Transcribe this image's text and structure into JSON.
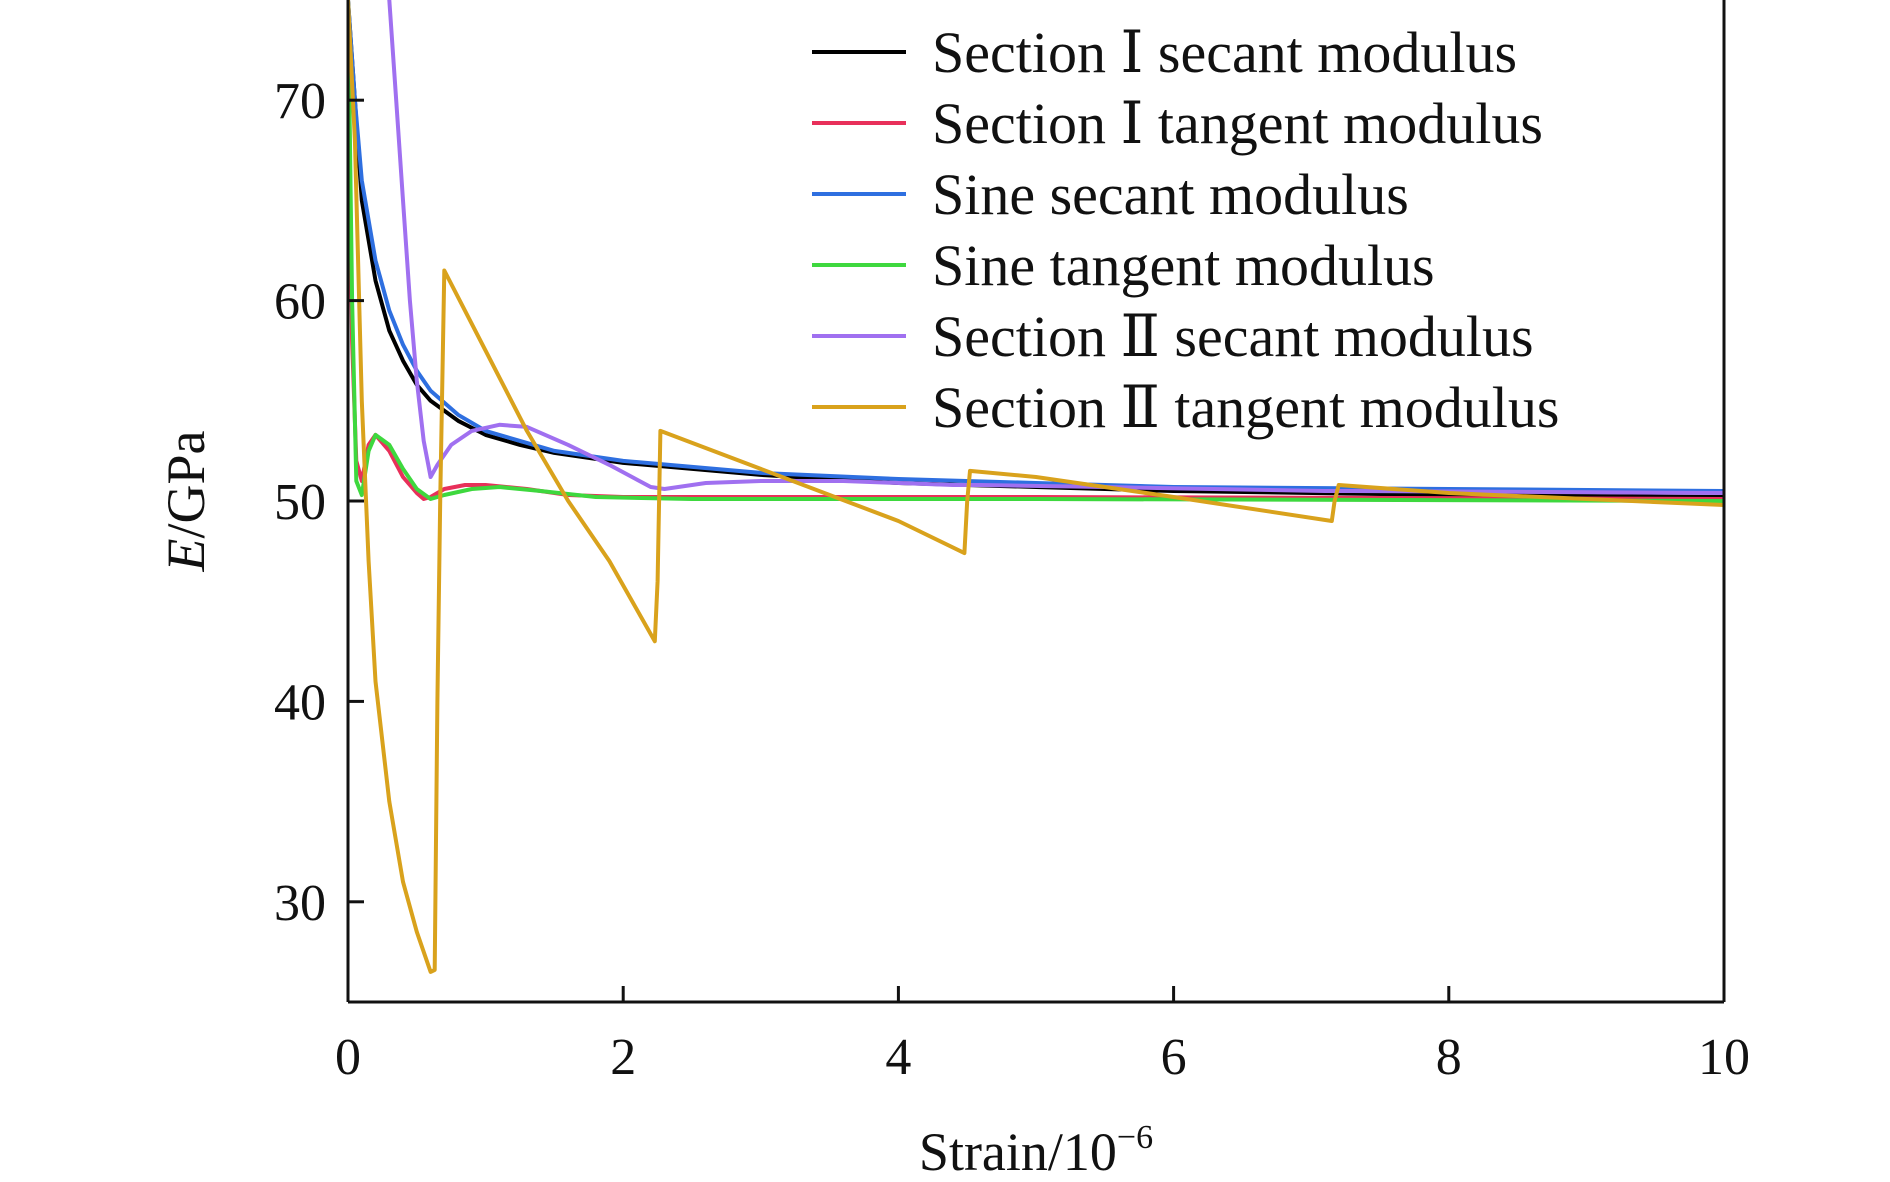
{
  "chart_data": {
    "type": "line",
    "xlabel_main": "Strain/10",
    "xlabel_sup": "−6",
    "ylabel_italic": "E",
    "ylabel_rest": "/GPa",
    "xlim": [
      0,
      10
    ],
    "ylim": [
      25,
      75
    ],
    "xticks": [
      0,
      2,
      4,
      6,
      8,
      10
    ],
    "yticks": [
      30,
      40,
      50,
      60,
      70
    ],
    "grid": false,
    "legend_position": "top-right",
    "series": [
      {
        "name": "Section Ⅰ secant modulus",
        "color": "#000000",
        "points": [
          [
            0.0,
            75
          ],
          [
            0.05,
            70
          ],
          [
            0.1,
            65
          ],
          [
            0.2,
            61
          ],
          [
            0.3,
            58.5
          ],
          [
            0.4,
            57
          ],
          [
            0.5,
            55.8
          ],
          [
            0.6,
            55
          ],
          [
            0.8,
            54
          ],
          [
            1.0,
            53.3
          ],
          [
            1.25,
            52.8
          ],
          [
            1.5,
            52.4
          ],
          [
            2.0,
            51.9
          ],
          [
            3.0,
            51.3
          ],
          [
            4.0,
            50.9
          ],
          [
            5.0,
            50.7
          ],
          [
            6.0,
            50.5
          ],
          [
            8.0,
            50.3
          ],
          [
            10.0,
            50.2
          ]
        ]
      },
      {
        "name": "Section Ⅰ tangent modulus",
        "color": "#e8305a",
        "points": [
          [
            0.0,
            75
          ],
          [
            0.03,
            58
          ],
          [
            0.06,
            52
          ],
          [
            0.1,
            51
          ],
          [
            0.15,
            52.8
          ],
          [
            0.2,
            53.3
          ],
          [
            0.3,
            52.5
          ],
          [
            0.4,
            51.2
          ],
          [
            0.5,
            50.4
          ],
          [
            0.55,
            50.1
          ],
          [
            0.6,
            50.2
          ],
          [
            0.7,
            50.6
          ],
          [
            0.85,
            50.8
          ],
          [
            1.0,
            50.8
          ],
          [
            1.3,
            50.6
          ],
          [
            1.6,
            50.3
          ],
          [
            2.0,
            50.2
          ],
          [
            3.0,
            50.2
          ],
          [
            5.0,
            50.2
          ],
          [
            10.0,
            50.1
          ]
        ]
      },
      {
        "name": "Sine secant modulus",
        "color": "#2e6fe0",
        "points": [
          [
            0.0,
            75
          ],
          [
            0.05,
            70
          ],
          [
            0.1,
            66
          ],
          [
            0.2,
            62
          ],
          [
            0.3,
            59.5
          ],
          [
            0.4,
            57.8
          ],
          [
            0.5,
            56.5
          ],
          [
            0.6,
            55.5
          ],
          [
            0.8,
            54.3
          ],
          [
            1.0,
            53.5
          ],
          [
            1.5,
            52.5
          ],
          [
            2.0,
            52.0
          ],
          [
            3.0,
            51.4
          ],
          [
            4.0,
            51.1
          ],
          [
            5.0,
            50.9
          ],
          [
            6.0,
            50.7
          ],
          [
            8.0,
            50.6
          ],
          [
            10.0,
            50.5
          ]
        ]
      },
      {
        "name": "Sine tangent modulus",
        "color": "#3ed83e",
        "points": [
          [
            0.0,
            75
          ],
          [
            0.03,
            60
          ],
          [
            0.06,
            51
          ],
          [
            0.1,
            50.3
          ],
          [
            0.15,
            52.5
          ],
          [
            0.2,
            53.3
          ],
          [
            0.3,
            52.8
          ],
          [
            0.4,
            51.6
          ],
          [
            0.5,
            50.6
          ],
          [
            0.6,
            50.1
          ],
          [
            0.7,
            50.3
          ],
          [
            0.9,
            50.6
          ],
          [
            1.1,
            50.7
          ],
          [
            1.4,
            50.5
          ],
          [
            1.8,
            50.2
          ],
          [
            2.5,
            50.1
          ],
          [
            5.0,
            50.1
          ],
          [
            10.0,
            50.0
          ]
        ]
      },
      {
        "name": "Section Ⅱ secant modulus",
        "color": "#a070f0",
        "points": [
          [
            0.3,
            75
          ],
          [
            0.35,
            70
          ],
          [
            0.4,
            65
          ],
          [
            0.45,
            60
          ],
          [
            0.5,
            56
          ],
          [
            0.55,
            53
          ],
          [
            0.6,
            51.2
          ],
          [
            0.65,
            51.8
          ],
          [
            0.75,
            52.8
          ],
          [
            0.9,
            53.5
          ],
          [
            1.1,
            53.8
          ],
          [
            1.3,
            53.7
          ],
          [
            1.6,
            52.8
          ],
          [
            1.9,
            51.8
          ],
          [
            2.2,
            50.7
          ],
          [
            2.3,
            50.6
          ],
          [
            2.6,
            50.9
          ],
          [
            3.0,
            51.0
          ],
          [
            3.6,
            51.0
          ],
          [
            4.4,
            50.8
          ],
          [
            4.6,
            50.8
          ],
          [
            5.5,
            50.7
          ],
          [
            7.1,
            50.5
          ],
          [
            7.3,
            50.5
          ],
          [
            10.0,
            50.4
          ]
        ]
      },
      {
        "name": "Section Ⅱ tangent modulus",
        "color": "#d9a21c",
        "points": [
          [
            0.0,
            75
          ],
          [
            0.05,
            68
          ],
          [
            0.1,
            55
          ],
          [
            0.15,
            47
          ],
          [
            0.2,
            41
          ],
          [
            0.3,
            35
          ],
          [
            0.4,
            31
          ],
          [
            0.5,
            28.5
          ],
          [
            0.6,
            26.5
          ],
          [
            0.63,
            26.6
          ],
          [
            0.65,
            40
          ],
          [
            0.67,
            50
          ],
          [
            0.7,
            61.5
          ],
          [
            1.0,
            57.5
          ],
          [
            1.3,
            53.5
          ],
          [
            1.6,
            50.0
          ],
          [
            1.9,
            47.0
          ],
          [
            2.23,
            43.0
          ],
          [
            2.25,
            46.0
          ],
          [
            2.27,
            53.5
          ],
          [
            3.0,
            51.6
          ],
          [
            4.0,
            49.0
          ],
          [
            4.48,
            47.4
          ],
          [
            4.5,
            50
          ],
          [
            4.52,
            51.5
          ],
          [
            5.0,
            51.2
          ],
          [
            6.0,
            50.2
          ],
          [
            7.15,
            49.0
          ],
          [
            7.17,
            50.0
          ],
          [
            7.2,
            50.8
          ],
          [
            8.0,
            50.4
          ],
          [
            10.0,
            49.8
          ]
        ]
      }
    ]
  }
}
